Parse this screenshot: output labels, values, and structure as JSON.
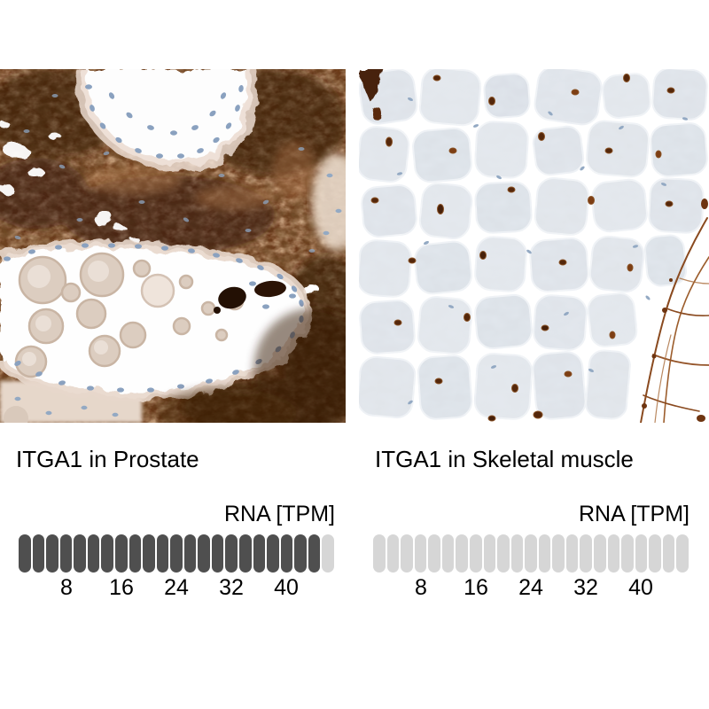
{
  "figure": {
    "gene": "ITGA1",
    "assay": "Immunohistochemistry tissue comparison with RNA expression pictogram bars"
  },
  "colors": {
    "background": "#ffffff",
    "text": "#000000",
    "pill_filled": "#4f4f4f",
    "pill_empty": "#d6d6d6",
    "ihc_stain_brown_dark": "#41210b",
    "ihc_stain_brown": "#6e3c18",
    "hematoxylin_nuclei_blue": "#8fa6c0",
    "muscle_fiber_gray": "#dfe3e9"
  },
  "panels": [
    {
      "caption": "ITGA1 in Prostate",
      "image_description": "IHC micrograph: prostate tissue, strong brown ITGA1 staining of stroma around pale glands with blue nuclei and tan concretions",
      "rna_unit_label": "RNA [TPM]",
      "bar": {
        "total_segments": 23,
        "filled_segments": 22,
        "tpm_per_segment": 2,
        "ticks": [
          "8",
          "16",
          "24",
          "32",
          "40"
        ]
      }
    },
    {
      "caption": "ITGA1 in Skeletal muscle",
      "image_description": "IHC micrograph: skeletal muscle cross-section, pale unstained fibers with scattered small brown capillary dots and blue nuclei",
      "rna_unit_label": "RNA [TPM]",
      "bar": {
        "total_segments": 23,
        "filled_segments": 0,
        "tpm_per_segment": 2,
        "ticks": [
          "8",
          "16",
          "24",
          "32",
          "40"
        ]
      }
    }
  ],
  "chart_data": [
    {
      "type": "bar",
      "title": "ITGA1 in Prostate",
      "xlabel": "RNA [TPM]",
      "ylabel": "",
      "categories": [
        "ITGA1 RNA expression"
      ],
      "values": [
        44
      ],
      "xlim": [
        0,
        46
      ],
      "x_ticks": [
        8,
        16,
        24,
        32,
        40
      ],
      "legend_position": "none",
      "grid": false,
      "notes": "Pictogram bar of 23 capsule segments, 2 TPM each; 22 dark-filled segments ~= 44 TPM"
    },
    {
      "type": "bar",
      "title": "ITGA1 in Skeletal muscle",
      "xlabel": "RNA [TPM]",
      "ylabel": "",
      "categories": [
        "ITGA1 RNA expression"
      ],
      "values": [
        0
      ],
      "xlim": [
        0,
        46
      ],
      "x_ticks": [
        8,
        16,
        24,
        32,
        40
      ],
      "legend_position": "none",
      "grid": false,
      "notes": "Pictogram bar of 23 capsule segments, 2 TPM each; 0 filled ~= near-zero TPM"
    }
  ]
}
